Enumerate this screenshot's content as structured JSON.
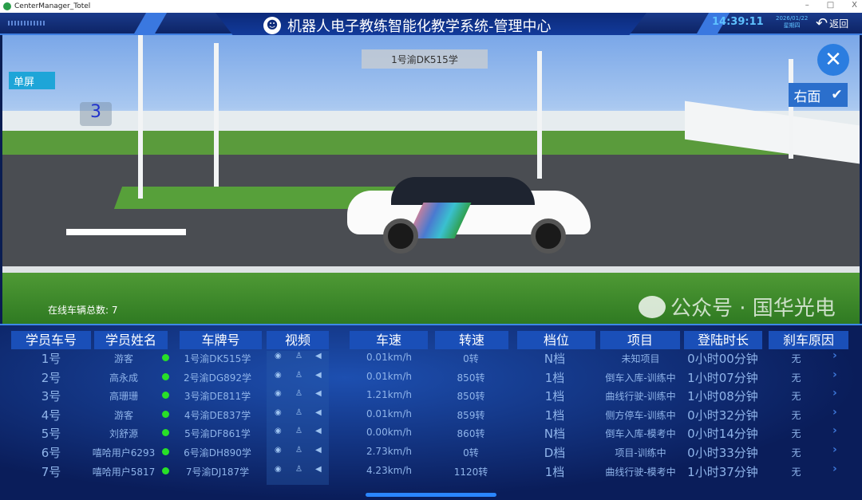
{
  "window": {
    "title": "CenterManager_Totel",
    "minimize": "–",
    "maximize": "□",
    "close": "X"
  },
  "header": {
    "title": "机器人电子教练智能化教学系统-管理中心",
    "time": "14:39:11",
    "date": "2026/01/22",
    "weekday": "星期四",
    "back_label": "返回"
  },
  "scene": {
    "single_screen_label": "单屏",
    "car_number": "3",
    "selected_plate": "1号渝DK515学",
    "view_label": "右面",
    "online_label": "在线车辆总数: 7"
  },
  "table": {
    "headers": [
      "学员车号",
      "学员姓名",
      "车牌号",
      "视频",
      "车速",
      "转速",
      "档位",
      "项目",
      "登陆时长",
      "刹车原因"
    ],
    "rows": [
      {
        "no": "1号",
        "name": "游客",
        "online": true,
        "plate": "1号渝DK515学",
        "speed": "0.01km/h",
        "rpm": "0转",
        "gear": "N档",
        "project": "未知项目",
        "duration": "0小时00分钟",
        "brake": "无"
      },
      {
        "no": "2号",
        "name": "高永成",
        "online": true,
        "plate": "2号渝DG892学",
        "speed": "0.01km/h",
        "rpm": "850转",
        "gear": "1档",
        "project": "倒车入库-训练中",
        "duration": "1小时07分钟",
        "brake": "无"
      },
      {
        "no": "3号",
        "name": "高珊珊",
        "online": true,
        "plate": "3号渝DE811学",
        "speed": "1.21km/h",
        "rpm": "850转",
        "gear": "1档",
        "project": "曲线行驶-训练中",
        "duration": "1小时08分钟",
        "brake": "无"
      },
      {
        "no": "4号",
        "name": "游客",
        "online": true,
        "plate": "4号渝DE837学",
        "speed": "0.01km/h",
        "rpm": "859转",
        "gear": "1档",
        "project": "侧方停车-训练中",
        "duration": "0小时32分钟",
        "brake": "无"
      },
      {
        "no": "5号",
        "name": "刘舒源",
        "online": true,
        "plate": "5号渝DF861学",
        "speed": "0.00km/h",
        "rpm": "860转",
        "gear": "N档",
        "project": "倒车入库-模考中",
        "duration": "0小时14分钟",
        "brake": "无"
      },
      {
        "no": "6号",
        "name": "嘻哈用户6293",
        "online": true,
        "plate": "6号渝DH890学",
        "speed": "2.73km/h",
        "rpm": "0转",
        "gear": "D档",
        "project": "项目-训练中",
        "duration": "0小时33分钟",
        "brake": "无"
      },
      {
        "no": "7号",
        "name": "嘻哈用户5817",
        "online": true,
        "plate": "7号渝DJ187学",
        "speed": "4.23km/h",
        "rpm": "1120转",
        "gear": "1档",
        "project": "曲线行驶-模考中",
        "duration": "1小时37分钟",
        "brake": "无"
      }
    ]
  },
  "watermark": "公众号 · 国华光电",
  "colors": {
    "accent": "#2b7de0",
    "online": "#28e028",
    "header_bg": "#1a4fb8"
  }
}
